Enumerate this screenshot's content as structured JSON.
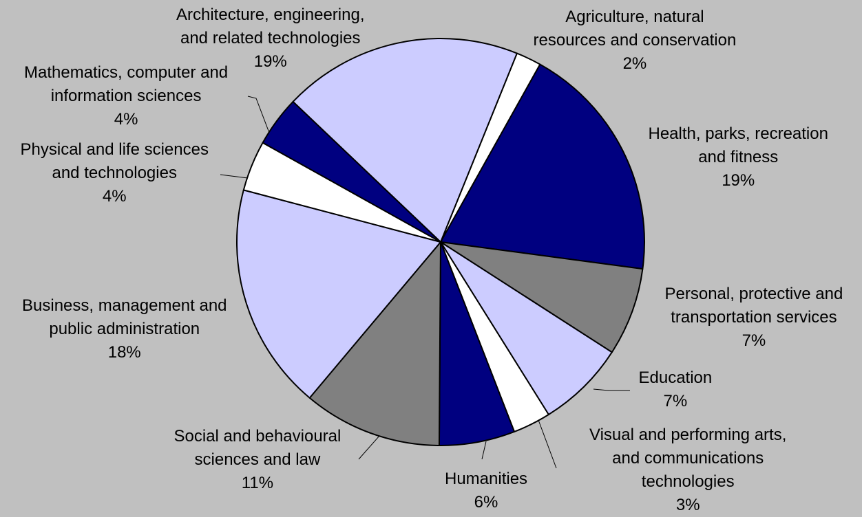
{
  "chart_data": {
    "type": "pie",
    "title": "",
    "start_angle_deg": 68,
    "direction": "clockwise",
    "slices": [
      {
        "lines": [
          "Agriculture, natural",
          "resources and conservation"
        ],
        "pct_label": "2%",
        "value": 2,
        "color": "#ffffff"
      },
      {
        "lines": [
          "Health, parks, recreation",
          "and fitness"
        ],
        "pct_label": "19%",
        "value": 19,
        "color": "#000080"
      },
      {
        "lines": [
          "Personal, protective and",
          "transportation services"
        ],
        "pct_label": "7%",
        "value": 7,
        "color": "#808080"
      },
      {
        "lines": [
          "Education"
        ],
        "pct_label": "7%",
        "value": 7,
        "color": "#ccccff"
      },
      {
        "lines": [
          "Visual and performing arts,",
          "and communications",
          "technologies"
        ],
        "pct_label": "3%",
        "value": 3,
        "color": "#ffffff"
      },
      {
        "lines": [
          "Humanities"
        ],
        "pct_label": "6%",
        "value": 6,
        "color": "#000080"
      },
      {
        "lines": [
          "Social and behavioural",
          "sciences and law"
        ],
        "pct_label": "11%",
        "value": 11,
        "color": "#808080"
      },
      {
        "lines": [
          "Business, management and",
          "public administration"
        ],
        "pct_label": "18%",
        "value": 18,
        "color": "#ccccff"
      },
      {
        "lines": [
          "Physical and life sciences",
          "and technologies"
        ],
        "pct_label": "4%",
        "value": 4,
        "color": "#ffffff"
      },
      {
        "lines": [
          "Mathematics, computer and",
          "information sciences"
        ],
        "pct_label": "4%",
        "value": 4,
        "color": "#000080"
      },
      {
        "lines": [
          "Architecture, engineering,",
          "and related technologies"
        ],
        "pct_label": "19%",
        "value": 19,
        "color": "#ccccff"
      }
    ]
  }
}
